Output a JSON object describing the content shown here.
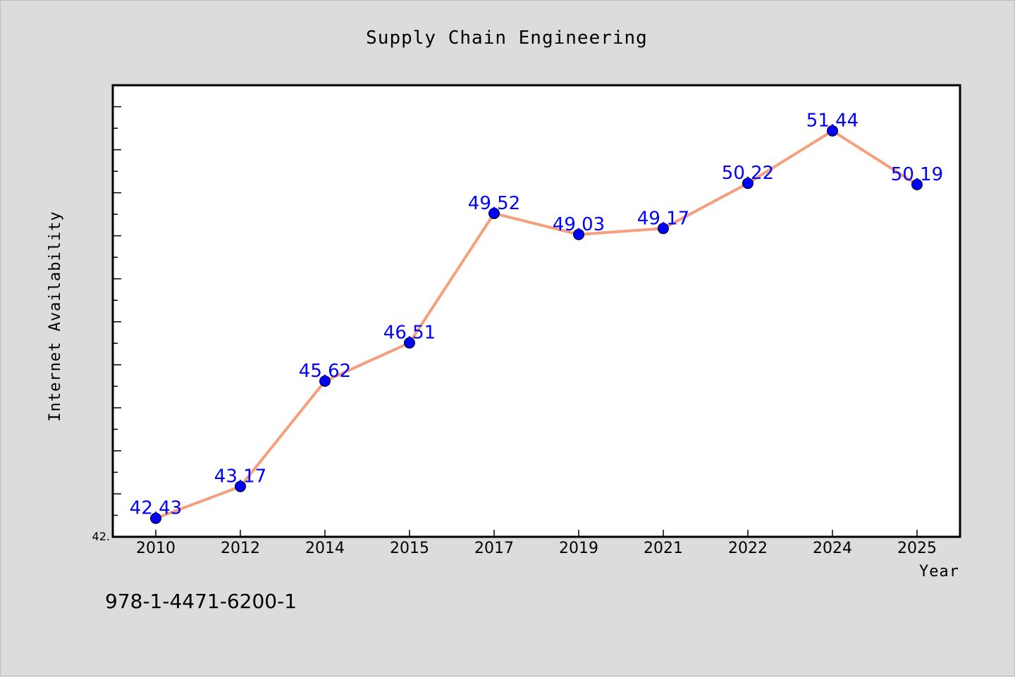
{
  "chart_data": {
    "type": "line",
    "title": "Supply Chain Engineering",
    "xlabel": "Year",
    "ylabel": "Internet Availability",
    "categories": [
      "2010",
      "2012",
      "2014",
      "2015",
      "2017",
      "2019",
      "2021",
      "2022",
      "2024",
      "2025"
    ],
    "series": [
      {
        "values": [
          42.43,
          43.17,
          45.62,
          46.51,
          49.52,
          49.03,
          49.17,
          50.22,
          51.44,
          50.19
        ],
        "data_labels": [
          "42.43",
          "43.17",
          "45.62",
          "46.51",
          "49.52",
          "49.03",
          "49.17",
          "50.22",
          "51.44",
          "50.19"
        ],
        "line_color": "#f4a07d",
        "marker_color": "#0000ff"
      }
    ],
    "ylim": [
      42.0,
      52.5
    ],
    "y_tick_labels": [
      "42."
    ],
    "y_minor_tick_step": 0.5,
    "grid": false,
    "legend": "none"
  },
  "annotation": "978-1-4471-6200-1",
  "colors": {
    "background": "#dcdcdc",
    "plot_background": "#ffffff",
    "line": "#f4a07d",
    "marker": "#0000ff",
    "data_label": "#0000ff"
  }
}
